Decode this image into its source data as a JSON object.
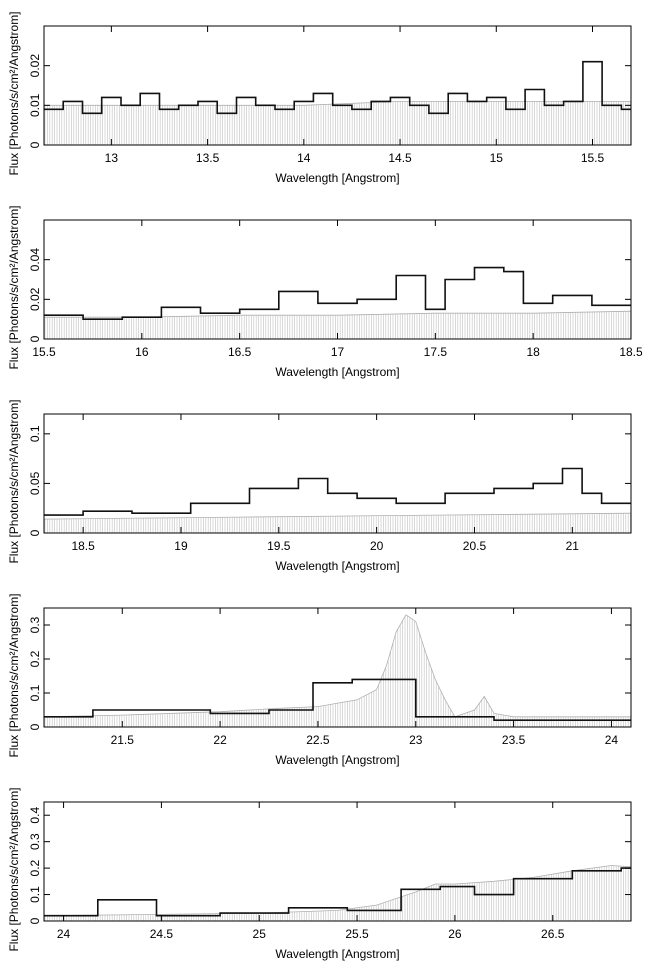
{
  "chart_data": [
    {
      "type": "line",
      "title": "",
      "xlabel": "Wavelength [Angstrom]",
      "ylabel": "Flux [Photons/s/cm²/Angstrom]",
      "xlim": [
        12.65,
        15.7
      ],
      "ylim": [
        0,
        0.03
      ],
      "xticks": [
        13,
        13.5,
        14,
        14.5,
        15,
        15.5
      ],
      "xtick_labels": [
        "13",
        "13.5",
        "14",
        "14.5",
        "15",
        "15.5"
      ],
      "yticks": [
        0,
        0.01,
        0.02
      ],
      "ytick_labels": [
        "0",
        "0.01",
        "0.02"
      ],
      "series": [
        {
          "role": "model",
          "x": [
            12.65,
            13.0,
            13.5,
            14.0,
            14.5,
            15.0,
            15.5,
            15.7
          ],
          "y": [
            0.01,
            0.01,
            0.01,
            0.01,
            0.011,
            0.011,
            0.011,
            0.011
          ]
        },
        {
          "role": "data",
          "x": [
            12.7,
            12.8,
            12.9,
            13.0,
            13.1,
            13.2,
            13.3,
            13.4,
            13.5,
            13.6,
            13.7,
            13.8,
            13.9,
            14.0,
            14.1,
            14.2,
            14.3,
            14.4,
            14.5,
            14.6,
            14.7,
            14.8,
            14.9,
            15.0,
            15.1,
            15.2,
            15.3,
            15.4,
            15.5,
            15.6,
            15.7
          ],
          "y": [
            0.009,
            0.011,
            0.008,
            0.012,
            0.01,
            0.013,
            0.009,
            0.01,
            0.011,
            0.008,
            0.012,
            0.01,
            0.009,
            0.011,
            0.013,
            0.01,
            0.009,
            0.011,
            0.012,
            0.01,
            0.008,
            0.013,
            0.011,
            0.012,
            0.009,
            0.014,
            0.01,
            0.011,
            0.021,
            0.01,
            0.009
          ]
        }
      ]
    },
    {
      "type": "line",
      "title": "",
      "xlabel": "Wavelength [Angstrom]",
      "ylabel": "Flux [Photons/s/cm²/Angstrom]",
      "xlim": [
        15.5,
        18.5
      ],
      "ylim": [
        0,
        0.06
      ],
      "xticks": [
        15.5,
        16,
        16.5,
        17,
        17.5,
        18,
        18.5
      ],
      "xtick_labels": [
        "15.5",
        "16",
        "16.5",
        "17",
        "17.5",
        "18",
        "18.5"
      ],
      "yticks": [
        0,
        0.02,
        0.04
      ],
      "ytick_labels": [
        "0",
        "0.02",
        "0.04"
      ],
      "series": [
        {
          "role": "model",
          "x": [
            15.5,
            16.0,
            16.5,
            17.0,
            17.5,
            18.0,
            18.5
          ],
          "y": [
            0.011,
            0.011,
            0.012,
            0.012,
            0.013,
            0.013,
            0.014
          ]
        },
        {
          "role": "data",
          "x": [
            15.6,
            15.8,
            16.0,
            16.2,
            16.4,
            16.6,
            16.8,
            17.0,
            17.2,
            17.4,
            17.5,
            17.6,
            17.8,
            17.9,
            18.0,
            18.2,
            18.4
          ],
          "y": [
            0.012,
            0.01,
            0.011,
            0.016,
            0.013,
            0.015,
            0.024,
            0.018,
            0.02,
            0.032,
            0.015,
            0.03,
            0.036,
            0.034,
            0.018,
            0.022,
            0.017
          ]
        }
      ]
    },
    {
      "type": "line",
      "title": "",
      "xlabel": "Wavelength [Angstrom]",
      "ylabel": "Flux [Photons/s/cm²/Angstrom]",
      "xlim": [
        18.3,
        21.3
      ],
      "ylim": [
        0,
        0.12
      ],
      "xticks": [
        18.5,
        19,
        19.5,
        20,
        20.5,
        21
      ],
      "xtick_labels": [
        "18.5",
        "19",
        "19.5",
        "20",
        "20.5",
        "21"
      ],
      "yticks": [
        0,
        0.05,
        0.1
      ],
      "ytick_labels": [
        "0",
        "0.05",
        "0.1"
      ],
      "series": [
        {
          "role": "model",
          "x": [
            18.3,
            18.8,
            19.3,
            19.8,
            20.3,
            20.8,
            21.3
          ],
          "y": [
            0.014,
            0.015,
            0.016,
            0.017,
            0.018,
            0.019,
            0.02
          ]
        },
        {
          "role": "data",
          "x": [
            18.4,
            18.6,
            18.9,
            19.2,
            19.5,
            19.7,
            19.8,
            20.0,
            20.2,
            20.5,
            20.7,
            20.9,
            21.0,
            21.1,
            21.2
          ],
          "y": [
            0.018,
            0.022,
            0.02,
            0.03,
            0.045,
            0.055,
            0.04,
            0.035,
            0.03,
            0.04,
            0.045,
            0.05,
            0.065,
            0.04,
            0.03
          ]
        }
      ]
    },
    {
      "type": "line",
      "title": "",
      "xlabel": "Wavelength [Angstrom]",
      "ylabel": "Flux [Photons/s/cm²/Angstrom]",
      "xlim": [
        21.1,
        24.1
      ],
      "ylim": [
        0,
        0.35
      ],
      "xticks": [
        21.5,
        22,
        22.5,
        23,
        23.5,
        24
      ],
      "xtick_labels": [
        "21.5",
        "22",
        "22.5",
        "23",
        "23.5",
        "24"
      ],
      "yticks": [
        0,
        0.1,
        0.2,
        0.3
      ],
      "ytick_labels": [
        "0",
        "0.1",
        "0.2",
        "0.3"
      ],
      "series": [
        {
          "role": "model",
          "x": [
            21.1,
            21.5,
            22.0,
            22.3,
            22.5,
            22.7,
            22.8,
            22.85,
            22.9,
            22.95,
            23.0,
            23.05,
            23.1,
            23.15,
            23.2,
            23.3,
            23.35,
            23.4,
            23.5,
            24.0,
            24.1
          ],
          "y": [
            0.03,
            0.035,
            0.045,
            0.055,
            0.06,
            0.08,
            0.11,
            0.18,
            0.28,
            0.33,
            0.31,
            0.22,
            0.14,
            0.08,
            0.03,
            0.05,
            0.09,
            0.04,
            0.03,
            0.03,
            0.03
          ]
        },
        {
          "role": "data",
          "x": [
            21.2,
            21.5,
            21.8,
            22.1,
            22.4,
            22.55,
            22.8,
            23.2,
            23.6,
            23.9
          ],
          "y": [
            0.03,
            0.05,
            0.05,
            0.04,
            0.05,
            0.13,
            0.14,
            0.03,
            0.02,
            0.02
          ]
        }
      ]
    },
    {
      "type": "line",
      "title": "",
      "xlabel": "Wavelength [Angstrom]",
      "ylabel": "Flux [Photons/s/cm²/Angstrom]",
      "xlim": [
        23.9,
        26.9
      ],
      "ylim": [
        0,
        0.45
      ],
      "xticks": [
        24,
        24.5,
        25,
        25.5,
        26,
        26.5
      ],
      "xtick_labels": [
        "24",
        "24.5",
        "25",
        "25.5",
        "26",
        "26.5"
      ],
      "yticks": [
        0,
        0.1,
        0.2,
        0.3,
        0.4
      ],
      "ytick_labels": [
        "0",
        "0.1",
        "0.2",
        "0.3",
        "0.4"
      ],
      "series": [
        {
          "role": "model",
          "x": [
            23.9,
            24.5,
            25.0,
            25.4,
            25.6,
            25.8,
            25.9,
            26.0,
            26.2,
            26.4,
            26.6,
            26.8,
            26.9
          ],
          "y": [
            0.02,
            0.025,
            0.03,
            0.04,
            0.06,
            0.11,
            0.14,
            0.14,
            0.15,
            0.165,
            0.19,
            0.21,
            0.205
          ]
        },
        {
          "role": "data",
          "x": [
            24.0,
            24.35,
            24.6,
            25.0,
            25.3,
            25.6,
            25.85,
            26.0,
            26.2,
            26.4,
            26.8,
            26.9
          ],
          "y": [
            0.02,
            0.08,
            0.02,
            0.03,
            0.05,
            0.04,
            0.12,
            0.13,
            0.1,
            0.16,
            0.19,
            0.2
          ]
        }
      ]
    }
  ]
}
